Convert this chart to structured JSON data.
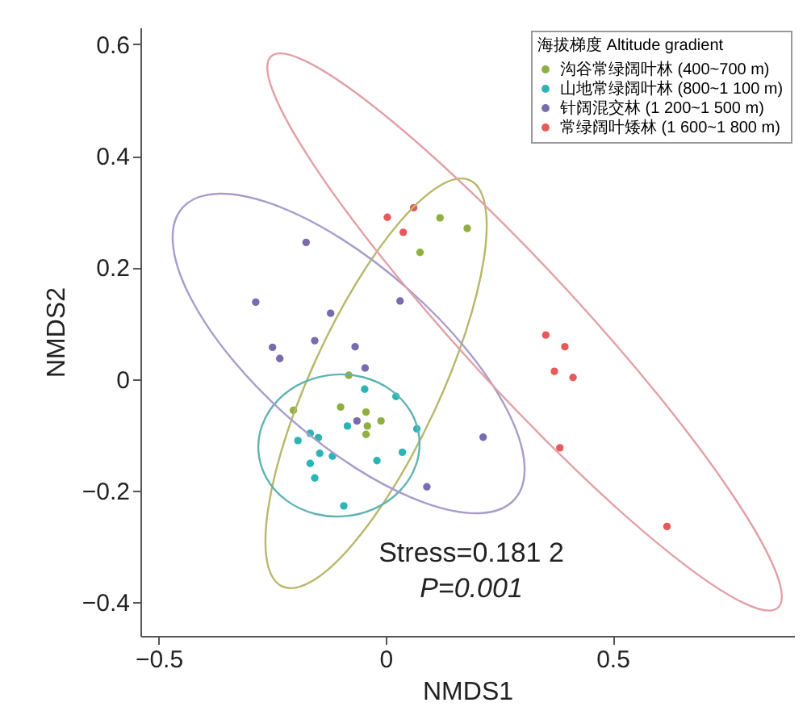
{
  "chart_data": {
    "type": "scatter",
    "xlabel": "NMDS1",
    "ylabel": "NMDS2",
    "legend_title": "海拔梯度 Altitude gradient",
    "legend": "top right",
    "grid": false,
    "marker": "circle",
    "xlim": [
      -0.54,
      0.9
    ],
    "ylim": [
      -0.46,
      0.63
    ],
    "xticks": [
      {
        "value": -0.5,
        "label": "−0.5"
      },
      0,
      0.5
    ],
    "yticks": [
      {
        "value": -0.4,
        "label": "−0.4"
      },
      {
        "value": -0.2,
        "label": "−0.2"
      },
      0,
      0.2,
      0.4,
      0.6
    ],
    "annotations": [
      "Stress=0.181 2",
      "P=0.001"
    ],
    "series": [
      {
        "name": "沟谷常绿阔叶林 (400~700 m)",
        "color": "#8db040",
        "x": [
          0.12,
          0.18,
          0.076,
          -0.081,
          -0.203,
          -0.099,
          -0.043,
          -0.01,
          -0.04,
          -0.043
        ],
        "values": [
          0.289,
          0.27,
          0.227,
          0.007,
          -0.056,
          -0.05,
          -0.059,
          -0.075,
          -0.084,
          -0.099
        ]
      },
      {
        "name": "山地常绿阔叶林 (800~1 100 m)",
        "color": "#2ab5b5",
        "x": [
          -0.046,
          0.023,
          -0.084,
          0.069,
          -0.193,
          -0.166,
          -0.148,
          -0.145,
          -0.117,
          0.037,
          -0.166,
          -0.019,
          -0.156,
          -0.092
        ],
        "values": [
          -0.018,
          -0.031,
          -0.084,
          -0.089,
          -0.11,
          -0.097,
          -0.105,
          -0.133,
          -0.138,
          -0.131,
          -0.151,
          -0.146,
          -0.177,
          -0.227
        ]
      },
      {
        "name": "针阔混交林 (1 200~1 500 m)",
        "color": "#7a6aae",
        "x": [
          -0.175,
          -0.286,
          -0.121,
          0.032,
          -0.249,
          -0.233,
          -0.156,
          -0.067,
          -0.045,
          -0.063,
          0.215,
          0.091
        ],
        "values": [
          0.245,
          0.138,
          0.118,
          0.14,
          0.057,
          0.037,
          0.069,
          0.058,
          0.02,
          -0.075,
          -0.104,
          -0.193
        ]
      },
      {
        "name": "常绿阔叶矮林 (1 600~1 800 m)",
        "color": "#e8595a",
        "x": [
          0.004,
          0.062,
          0.039,
          0.353,
          0.395,
          0.372,
          0.413,
          0.384,
          0.62
        ],
        "values": [
          0.29,
          0.307,
          0.263,
          0.079,
          0.058,
          0.014,
          0.003,
          -0.123,
          -0.264
        ]
      }
    ]
  }
}
